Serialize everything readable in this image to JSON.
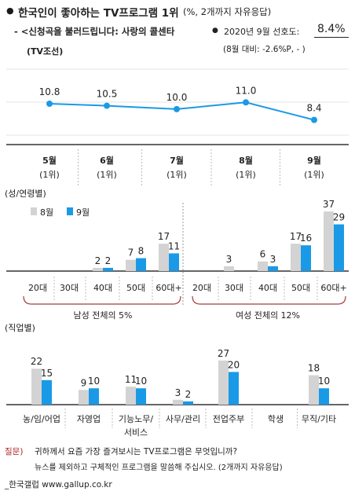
{
  "header": {
    "title": "한국인이 좋아하는 TV프로그램 1위",
    "title_note": "(%, 2개까지 자유응답)",
    "program": "- <신청곡을 불러드립니다: 사랑의 콜센타",
    "month_label": "2020년 9월 선호도:",
    "month_value": "8.4%",
    "channel": "(TV조선)",
    "delta": "(8월 대비: -2.6%P,  -  )"
  },
  "colors": {
    "accent": "#1a9ae6",
    "prev_month": "#d3d3d3",
    "brace": "#a63a3a",
    "question": "#b22222"
  },
  "chart_data": [
    {
      "type": "line",
      "title": "",
      "categories": [
        "5월",
        "6월",
        "7월",
        "8월",
        "9월"
      ],
      "rank_labels": [
        "(1위)",
        "(1위)",
        "(1위)",
        "(1위)",
        "(1위)"
      ],
      "series": [
        {
          "values": [
            10.8,
            10.5,
            10.0,
            11.0,
            8.4
          ]
        }
      ]
    },
    {
      "type": "bar",
      "section_label": "(성/연령별)",
      "legend": [
        "8월",
        "9월"
      ],
      "legend_position": "top-left",
      "categories": [
        "20대",
        "30대",
        "40대",
        "50대",
        "60대+",
        "20대",
        "30대",
        "40대",
        "50대",
        "60대+"
      ],
      "series": [
        {
          "name": "8월",
          "values": [
            null,
            null,
            2,
            7,
            17,
            null,
            3,
            6,
            17,
            37
          ]
        },
        {
          "name": "9월",
          "values": [
            null,
            null,
            2,
            8,
            11,
            null,
            null,
            3,
            16,
            29
          ]
        }
      ],
      "groups": [
        {
          "label": "남성 전체의 5%"
        },
        {
          "label": "여성 전체의 12%"
        }
      ]
    },
    {
      "type": "bar",
      "section_label": "(직업별)",
      "categories": [
        "농/임/어업",
        "자영업",
        "기능노무/\n서비스",
        "사무/관리",
        "전업주부",
        "학생",
        "무직/기타"
      ],
      "category_lines": [
        [
          "농/임/어업"
        ],
        [
          "자영업"
        ],
        [
          "기능노무/",
          "서비스"
        ],
        [
          "사무/관리"
        ],
        [
          "전업주부"
        ],
        [
          "학생"
        ],
        [
          "무직/기타"
        ]
      ],
      "series": [
        {
          "name": "8월",
          "values": [
            22,
            9,
            11,
            3,
            27,
            null,
            18
          ]
        },
        {
          "name": "9월",
          "values": [
            15,
            10,
            10,
            2,
            20,
            null,
            10
          ]
        }
      ]
    }
  ],
  "footer": {
    "question_label": "질문)",
    "question_line1": "귀하께서 요즘 가장 즐겨보시는 TV프로그램은 무엇입니까?",
    "question_line2": "뉴스를 제외하고 구체적인 프로그램을 말씀해 주십시오. (2개까지 자유응답)",
    "source": "_한국갤럽 www.gallup.co.kr"
  }
}
